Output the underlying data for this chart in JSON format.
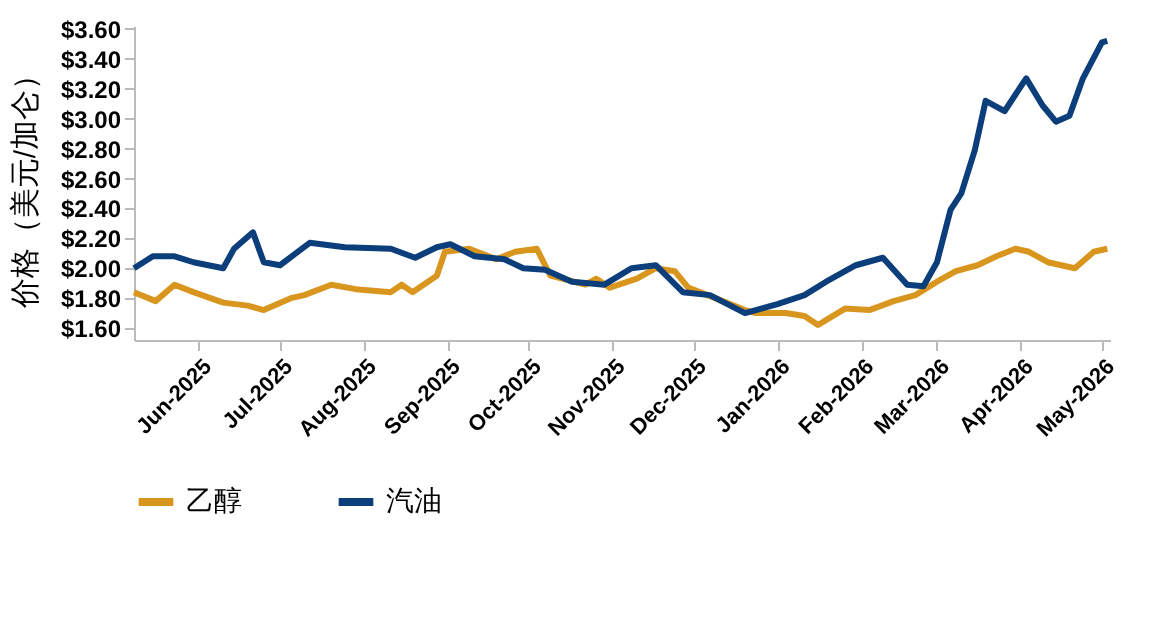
{
  "chart_data": {
    "type": "line",
    "ylabel": "价格（美元/加仑）",
    "legend": "bottom",
    "grid": false,
    "line_style": "solid",
    "marker": "none",
    "xlim": [
      "2025-05-08",
      "2026-05-04"
    ],
    "xticks": [
      {
        "value": "2025-06-01",
        "label": "Jun-2025"
      },
      {
        "value": "2025-07-01",
        "label": "Jul-2025"
      },
      {
        "value": "2025-08-01",
        "label": "Aug-2025"
      },
      {
        "value": "2025-09-01",
        "label": "Sep-2025"
      },
      {
        "value": "2025-10-01",
        "label": "Oct-2025"
      },
      {
        "value": "2025-11-01",
        "label": "Nov-2025"
      },
      {
        "value": "2025-12-01",
        "label": "Dec-2025"
      },
      {
        "value": "2026-01-01",
        "label": "Jan-2026"
      },
      {
        "value": "2026-02-01",
        "label": "Feb-2026"
      },
      {
        "value": "2026-03-01",
        "label": "Mar-2026"
      },
      {
        "value": "2026-04-01",
        "label": "Apr-2026"
      },
      {
        "value": "2026-05-01",
        "label": "May-2026"
      }
    ],
    "ylim": [
      1.52,
      3.62
    ],
    "yticks": [
      {
        "value": 1.6,
        "label": "$1.60"
      },
      {
        "value": 1.8,
        "label": "$1.80"
      },
      {
        "value": 2.0,
        "label": "$2.00"
      },
      {
        "value": 2.2,
        "label": "$2.20"
      },
      {
        "value": 2.4,
        "label": "$2.40"
      },
      {
        "value": 2.6,
        "label": "$2.60"
      },
      {
        "value": 2.8,
        "label": "$2.80"
      },
      {
        "value": 3.0,
        "label": "$3.00"
      },
      {
        "value": 3.2,
        "label": "$3.20"
      },
      {
        "value": 3.4,
        "label": "$3.40"
      },
      {
        "value": 3.6,
        "label": "$3.60"
      }
    ],
    "series": [
      {
        "name": "乙醇",
        "color": "#d9961f",
        "x": [
          "2025-05-08",
          "2025-05-16",
          "2025-05-23",
          "2025-05-30",
          "2025-06-10",
          "2025-06-19",
          "2025-06-25",
          "2025-07-05",
          "2025-07-10",
          "2025-07-20",
          "2025-07-29",
          "2025-08-11",
          "2025-08-15",
          "2025-08-19",
          "2025-08-28",
          "2025-08-31",
          "2025-09-09",
          "2025-09-19",
          "2025-09-26",
          "2025-10-04",
          "2025-10-09",
          "2025-10-22",
          "2025-10-26",
          "2025-10-31",
          "2025-11-10",
          "2025-11-17",
          "2025-11-24",
          "2025-11-29",
          "2025-12-09",
          "2025-12-20",
          "2025-12-24",
          "2026-01-04",
          "2026-01-11",
          "2026-01-16",
          "2026-01-26",
          "2026-02-04",
          "2026-02-13",
          "2026-02-21",
          "2026-03-01",
          "2026-03-08",
          "2026-03-16",
          "2026-03-23",
          "2026-03-30",
          "2026-04-04",
          "2026-04-11",
          "2026-04-21",
          "2026-04-28",
          "2026-05-03"
        ],
        "values": [
          1.84,
          1.78,
          1.89,
          1.84,
          1.77,
          1.75,
          1.72,
          1.8,
          1.82,
          1.89,
          1.86,
          1.84,
          1.89,
          1.84,
          1.95,
          2.11,
          2.13,
          2.06,
          2.11,
          2.13,
          1.95,
          1.89,
          1.93,
          1.87,
          1.93,
          2.0,
          1.98,
          1.87,
          1.8,
          1.72,
          1.7,
          1.7,
          1.68,
          1.62,
          1.73,
          1.72,
          1.78,
          1.82,
          1.91,
          1.98,
          2.02,
          2.08,
          2.13,
          2.11,
          2.04,
          2.0,
          2.11,
          2.13
        ]
      },
      {
        "name": "汽油",
        "color": "#0b3e7a",
        "x": [
          "2025-05-08",
          "2025-05-15",
          "2025-05-23",
          "2025-05-30",
          "2025-06-10",
          "2025-06-14",
          "2025-06-21",
          "2025-06-25",
          "2025-07-01",
          "2025-07-12",
          "2025-07-25",
          "2025-08-11",
          "2025-08-20",
          "2025-08-28",
          "2025-09-02",
          "2025-09-11",
          "2025-09-22",
          "2025-09-29",
          "2025-10-07",
          "2025-10-17",
          "2025-10-29",
          "2025-11-08",
          "2025-11-17",
          "2025-11-27",
          "2025-12-07",
          "2025-12-20",
          "2026-01-01",
          "2026-01-11",
          "2026-01-19",
          "2026-01-30",
          "2026-02-09",
          "2026-02-18",
          "2026-02-24",
          "2026-03-01",
          "2026-03-06",
          "2026-03-10",
          "2026-03-15",
          "2026-03-19",
          "2026-03-26",
          "2026-04-03",
          "2026-04-09",
          "2026-04-14",
          "2026-04-19",
          "2026-04-24",
          "2026-05-01",
          "2026-05-03"
        ],
        "values": [
          2.0,
          2.08,
          2.08,
          2.04,
          2.0,
          2.13,
          2.24,
          2.04,
          2.02,
          2.17,
          2.14,
          2.13,
          2.07,
          2.14,
          2.16,
          2.08,
          2.06,
          2.0,
          1.99,
          1.91,
          1.89,
          2.0,
          2.02,
          1.84,
          1.82,
          1.7,
          1.76,
          1.82,
          1.91,
          2.02,
          2.07,
          1.89,
          1.88,
          2.04,
          2.39,
          2.5,
          2.79,
          3.12,
          3.05,
          3.27,
          3.09,
          2.98,
          3.02,
          3.27,
          3.51,
          3.52
        ]
      }
    ]
  }
}
